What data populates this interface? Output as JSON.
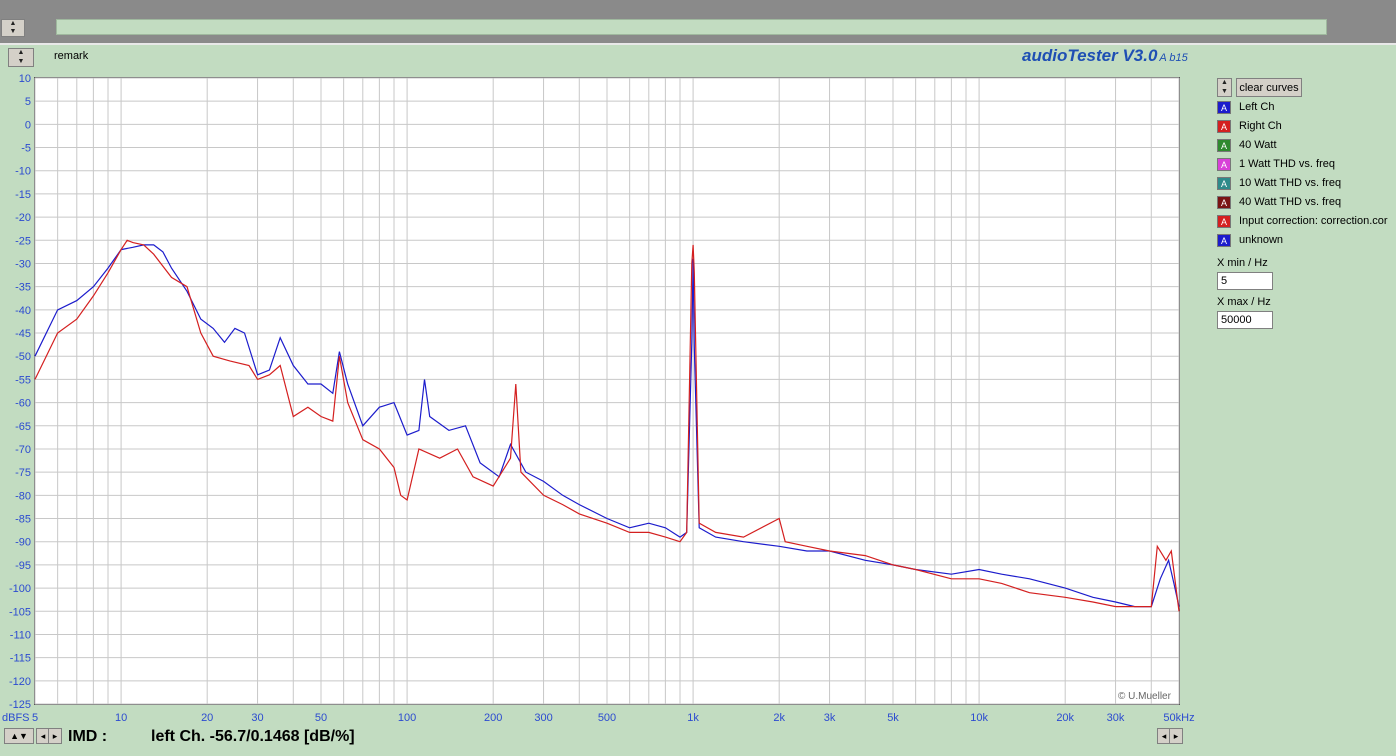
{
  "header": {
    "remark_label": "remark",
    "brand": "audioTester V3.0",
    "build": "A b15"
  },
  "controls": {
    "clear_label": "clear curves",
    "xmin_label": "X min / Hz",
    "xmin_value": "5",
    "xmax_label": "X max / Hz",
    "xmax_value": "50000"
  },
  "legend": [
    {
      "label": "Left Ch",
      "color": "#1c1ccc",
      "icon": "A"
    },
    {
      "label": "Right Ch",
      "color": "#d42020",
      "icon": "A"
    },
    {
      "label": "40 Watt",
      "color": "#2e8a2e",
      "icon": "A"
    },
    {
      "label": "1 Watt THD vs. freq",
      "color": "#d840d8",
      "icon": "A"
    },
    {
      "label": "10 Watt THD vs. freq",
      "color": "#2e8a8a",
      "icon": "A"
    },
    {
      "label": "40 Watt THD vs. freq",
      "color": "#7a1414",
      "icon": "A"
    },
    {
      "label": "Input correction: correction.cor",
      "color": "#d42020",
      "icon": "A"
    },
    {
      "label": "unknown",
      "color": "#1c1ccc",
      "icon": "A"
    }
  ],
  "status": {
    "imd_label": "IMD :",
    "imd_value": "left Ch. -56.7/0.1468 [dB/%]"
  },
  "copyright": "© U.Mueller",
  "chart_data": {
    "type": "line",
    "ylabel": "dBFS",
    "x_scale": "log",
    "xlim": [
      5,
      50000
    ],
    "ylim": [
      -125,
      10
    ],
    "grid": true,
    "ytick_labels": [
      "10",
      "5",
      "0",
      "-5",
      "-10",
      "-15",
      "-20",
      "-25",
      "-30",
      "-35",
      "-40",
      "-45",
      "-50",
      "-55",
      "-60",
      "-65",
      "-70",
      "-75",
      "-80",
      "-85",
      "-90",
      "-95",
      "-100",
      "-105",
      "-110",
      "-115",
      "-120",
      "-125"
    ],
    "xticks": [
      5,
      10,
      20,
      30,
      50,
      100,
      200,
      300,
      500,
      1000,
      2000,
      3000,
      5000,
      10000,
      20000,
      30000,
      50000
    ],
    "xtick_labels": [
      "5",
      "10",
      "20",
      "30",
      "50",
      "100",
      "200",
      "300",
      "500",
      "1k",
      "2k",
      "3k",
      "5k",
      "10k",
      "20k",
      "30k",
      "50kHz"
    ],
    "series": [
      {
        "name": "Left Ch",
        "color": "#1c1ccc",
        "points": [
          [
            5,
            -50
          ],
          [
            6,
            -40
          ],
          [
            7,
            -38
          ],
          [
            8,
            -35
          ],
          [
            9,
            -31
          ],
          [
            10,
            -27
          ],
          [
            11,
            -26.5
          ],
          [
            12,
            -26
          ],
          [
            13,
            -26
          ],
          [
            14,
            -27.5
          ],
          [
            15,
            -31
          ],
          [
            17,
            -36
          ],
          [
            19,
            -42
          ],
          [
            21,
            -44
          ],
          [
            23,
            -47
          ],
          [
            25,
            -44
          ],
          [
            27,
            -45
          ],
          [
            30,
            -54
          ],
          [
            33,
            -53
          ],
          [
            36,
            -46
          ],
          [
            40,
            -52
          ],
          [
            45,
            -56
          ],
          [
            50,
            -56
          ],
          [
            55,
            -58
          ],
          [
            58,
            -49
          ],
          [
            62,
            -56
          ],
          [
            70,
            -65
          ],
          [
            80,
            -61
          ],
          [
            90,
            -60
          ],
          [
            100,
            -67
          ],
          [
            110,
            -66
          ],
          [
            115,
            -55
          ],
          [
            120,
            -63
          ],
          [
            140,
            -66
          ],
          [
            160,
            -65
          ],
          [
            180,
            -73
          ],
          [
            210,
            -76
          ],
          [
            230,
            -69
          ],
          [
            260,
            -75
          ],
          [
            300,
            -77
          ],
          [
            350,
            -80
          ],
          [
            400,
            -82
          ],
          [
            500,
            -85
          ],
          [
            600,
            -87
          ],
          [
            700,
            -86
          ],
          [
            800,
            -87
          ],
          [
            900,
            -89
          ],
          [
            950,
            -88
          ],
          [
            990,
            -47
          ],
          [
            1000,
            -29
          ],
          [
            1010,
            -48
          ],
          [
            1050,
            -87
          ],
          [
            1200,
            -89
          ],
          [
            1500,
            -90
          ],
          [
            2000,
            -91
          ],
          [
            2500,
            -92
          ],
          [
            3000,
            -92
          ],
          [
            4000,
            -94
          ],
          [
            5000,
            -95
          ],
          [
            6000,
            -96
          ],
          [
            8000,
            -97
          ],
          [
            10000,
            -96
          ],
          [
            12000,
            -97
          ],
          [
            15000,
            -98
          ],
          [
            20000,
            -100
          ],
          [
            25000,
            -102
          ],
          [
            30000,
            -103
          ],
          [
            35000,
            -104
          ],
          [
            40000,
            -104
          ],
          [
            43000,
            -98
          ],
          [
            46000,
            -94
          ],
          [
            48000,
            -99
          ],
          [
            50000,
            -104
          ]
        ]
      },
      {
        "name": "Right Ch",
        "color": "#d42020",
        "points": [
          [
            5,
            -55
          ],
          [
            6,
            -45
          ],
          [
            7,
            -42
          ],
          [
            8,
            -37
          ],
          [
            9,
            -32
          ],
          [
            10,
            -27
          ],
          [
            10.5,
            -25
          ],
          [
            11,
            -25.5
          ],
          [
            12,
            -26
          ],
          [
            13,
            -28
          ],
          [
            15,
            -33
          ],
          [
            17,
            -35
          ],
          [
            19,
            -45
          ],
          [
            21,
            -50
          ],
          [
            24,
            -51
          ],
          [
            28,
            -52
          ],
          [
            30,
            -55
          ],
          [
            33,
            -54
          ],
          [
            36,
            -52
          ],
          [
            40,
            -63
          ],
          [
            45,
            -61
          ],
          [
            50,
            -63
          ],
          [
            55,
            -64
          ],
          [
            58,
            -50
          ],
          [
            62,
            -60
          ],
          [
            70,
            -68
          ],
          [
            80,
            -70
          ],
          [
            90,
            -74
          ],
          [
            95,
            -80
          ],
          [
            100,
            -81
          ],
          [
            110,
            -70
          ],
          [
            130,
            -72
          ],
          [
            150,
            -70
          ],
          [
            170,
            -76
          ],
          [
            200,
            -78
          ],
          [
            230,
            -72
          ],
          [
            240,
            -56
          ],
          [
            250,
            -75
          ],
          [
            300,
            -80
          ],
          [
            350,
            -82
          ],
          [
            400,
            -84
          ],
          [
            500,
            -86
          ],
          [
            600,
            -88
          ],
          [
            700,
            -88
          ],
          [
            800,
            -89
          ],
          [
            900,
            -90
          ],
          [
            950,
            -88
          ],
          [
            990,
            -30
          ],
          [
            1000,
            -26
          ],
          [
            1010,
            -32
          ],
          [
            1050,
            -86
          ],
          [
            1200,
            -88
          ],
          [
            1500,
            -89
          ],
          [
            2000,
            -85
          ],
          [
            2100,
            -90
          ],
          [
            2500,
            -91
          ],
          [
            3000,
            -92
          ],
          [
            4000,
            -93
          ],
          [
            5000,
            -95
          ],
          [
            6000,
            -96
          ],
          [
            8000,
            -98
          ],
          [
            10000,
            -98
          ],
          [
            12000,
            -99
          ],
          [
            15000,
            -101
          ],
          [
            20000,
            -102
          ],
          [
            25000,
            -103
          ],
          [
            30000,
            -104
          ],
          [
            35000,
            -104
          ],
          [
            40000,
            -104
          ],
          [
            42000,
            -91
          ],
          [
            45000,
            -94
          ],
          [
            47000,
            -92
          ],
          [
            50000,
            -105
          ]
        ]
      }
    ]
  }
}
